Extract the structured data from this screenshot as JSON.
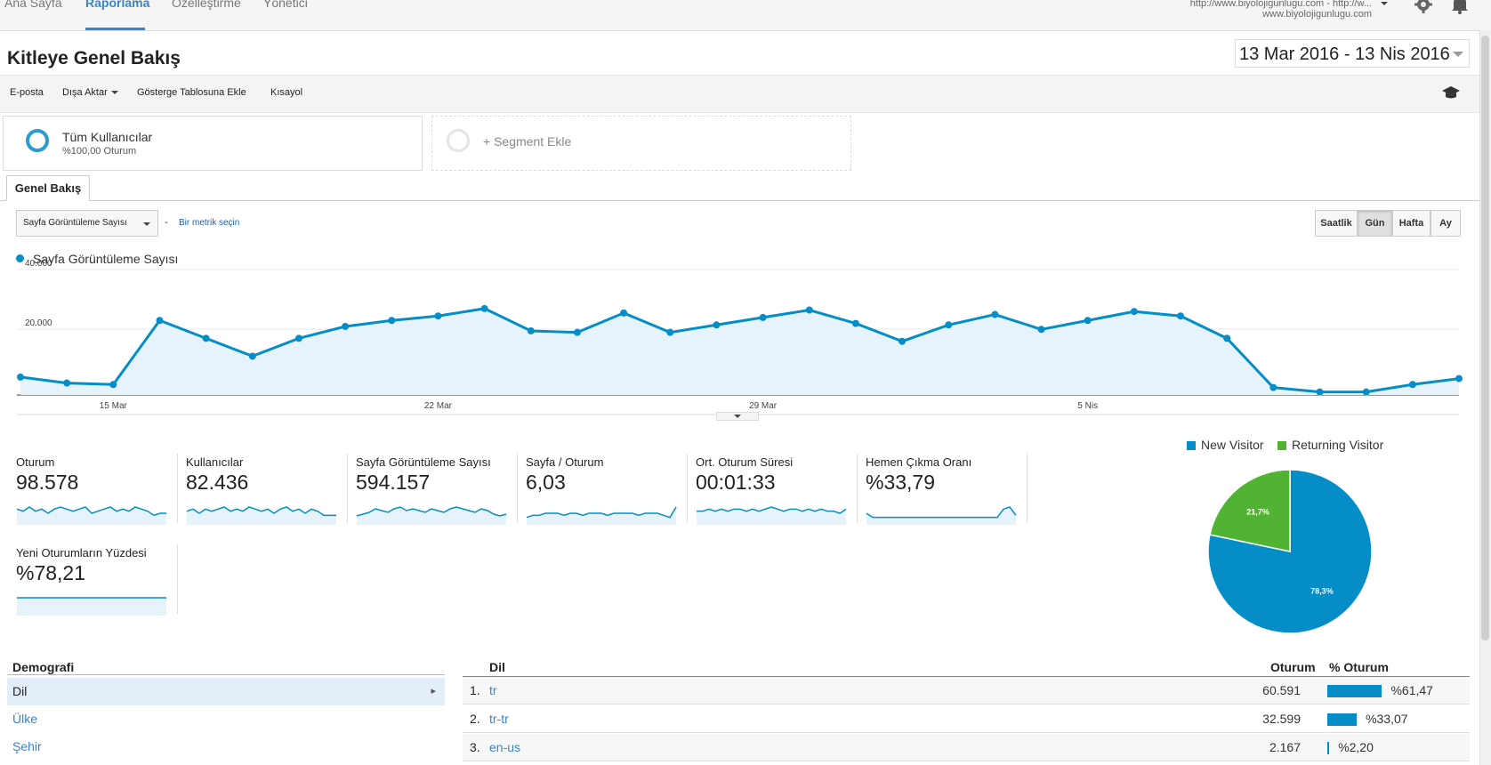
{
  "topnav": {
    "tabs": [
      {
        "label": "Ana Sayfa",
        "active": false
      },
      {
        "label": "Raporlama",
        "active": true
      },
      {
        "label": "Özelleştirme",
        "active": false
      },
      {
        "label": "Yönetici",
        "active": false
      }
    ],
    "account_line1": "http://www.biyolojigunlugu.com - http://w...",
    "account_line2": "www.biyolojigunlugu.com",
    "icons": [
      "gear-icon",
      "bell-icon"
    ]
  },
  "header": {
    "title": "Kitleye Genel Bakış",
    "date_range": "13 Mar 2016 - 13 Nis 2016"
  },
  "toolbar": {
    "email": "E-posta",
    "export": "Dışa Aktar",
    "add_dashboard": "Gösterge Tablosuna Ekle",
    "shortcut": "Kısayol"
  },
  "segments": {
    "active": {
      "name": "Tüm Kullanıcılar",
      "detail": "%100,00 Oturum"
    },
    "add": "+ Segment Ekle"
  },
  "tabs": {
    "overview": "Genel Bakış"
  },
  "metric_picker": {
    "selected": "Sayfa Görüntüleme Sayısı",
    "separator": "-",
    "choose": "Bir metrik seçin"
  },
  "granularity": [
    {
      "label": "Saatlik",
      "active": false
    },
    {
      "label": "Gün",
      "active": true
    },
    {
      "label": "Hafta",
      "active": false
    },
    {
      "label": "Ay",
      "active": false
    }
  ],
  "chart_data": {
    "type": "area",
    "series": [
      {
        "name": "Sayfa Görüntüleme Sayısı",
        "values": [
          6000,
          4000,
          3500,
          25000,
          19000,
          13000,
          19000,
          23000,
          25000,
          26500,
          29000,
          21500,
          21000,
          27500,
          21000,
          23500,
          26000,
          28500,
          24000,
          18000,
          23500,
          27000,
          22000,
          25000,
          28000,
          26500,
          19000,
          2500,
          1000,
          1000,
          3500,
          5500
        ]
      }
    ],
    "x_tick_labels": [
      "15 Mar",
      "22 Mar",
      "29 Mar",
      "5 Nis"
    ],
    "x_tick_indices": [
      2,
      9,
      16,
      23
    ],
    "y_ticks": [
      {
        "value": 20000,
        "label": "20.000"
      },
      {
        "value": 40000,
        "label": "40.000"
      }
    ],
    "ylim": [
      0,
      40000
    ],
    "color": "#058dc7",
    "fill": "#e6f3fa",
    "grid": true,
    "legend": "top-left"
  },
  "metrics": [
    {
      "label": "Oturum",
      "value": "98.578",
      "spark": [
        5,
        4,
        6,
        4,
        5,
        3,
        5,
        6,
        5,
        4,
        5,
        6,
        3,
        4,
        5,
        6,
        4,
        5,
        4,
        6,
        5,
        4,
        2,
        3,
        3
      ]
    },
    {
      "label": "Kullanıcılar",
      "value": "82.436",
      "spark": [
        4,
        5,
        3,
        5,
        4,
        5,
        6,
        4,
        5,
        4,
        6,
        5,
        4,
        5,
        3,
        5,
        6,
        4,
        5,
        3,
        5,
        4,
        2,
        2,
        2
      ]
    },
    {
      "label": "Sayfa Görüntüleme Sayısı",
      "value": "594.157",
      "spark": [
        2,
        3,
        4,
        6,
        5,
        4,
        6,
        7,
        5,
        6,
        5,
        4,
        6,
        5,
        4,
        6,
        7,
        6,
        5,
        4,
        6,
        5,
        3,
        2,
        3
      ]
    },
    {
      "label": "Sayfa / Oturum",
      "value": "6,03",
      "spark": [
        1,
        2,
        2,
        3,
        3,
        3,
        2,
        3,
        3,
        2,
        3,
        3,
        3,
        2,
        3,
        3,
        3,
        3,
        2,
        3,
        3,
        3,
        2,
        1,
        6
      ]
    },
    {
      "label": "Ort. Oturum Süresi",
      "value": "00:01:33",
      "spark": [
        4,
        4,
        5,
        4,
        5,
        4,
        5,
        5,
        4,
        5,
        4,
        5,
        6,
        5,
        4,
        5,
        5,
        4,
        5,
        4,
        5,
        4,
        4,
        3,
        5
      ]
    },
    {
      "label": "Hemen Çıkma Oranı",
      "value": "%33,79",
      "spark": [
        3,
        1,
        1,
        1,
        1,
        1,
        1,
        1,
        1,
        1,
        1,
        1,
        1,
        1,
        1,
        1,
        1,
        1,
        1,
        1,
        1,
        1,
        5,
        6,
        2
      ]
    },
    {
      "label": "Yeni Oturumların Yüzdesi",
      "value": "%78,21",
      "spark": [
        3,
        3,
        3,
        3,
        3,
        3,
        3,
        3,
        3,
        3,
        3,
        3,
        3,
        3,
        3,
        3,
        3,
        3,
        3,
        3,
        3,
        3,
        3,
        3,
        3
      ]
    }
  ],
  "pie": {
    "legend": [
      {
        "name": "New Visitor",
        "color": "#058dc7"
      },
      {
        "name": "Returning Visitor",
        "color": "#50b432"
      }
    ],
    "slices": [
      {
        "name": "New Visitor",
        "value": 78.3,
        "label": "78,3%",
        "color": "#058dc7"
      },
      {
        "name": "Returning Visitor",
        "value": 21.7,
        "label": "21,7%",
        "color": "#50b432"
      }
    ]
  },
  "demographics": {
    "title": "Demografi",
    "items": [
      {
        "label": "Dil",
        "selected": true
      },
      {
        "label": "Ülke",
        "selected": false
      },
      {
        "label": "Şehir",
        "selected": false
      }
    ]
  },
  "language_table": {
    "headers": {
      "dimension": "Dil",
      "sessions": "Oturum",
      "pct": "% Oturum"
    },
    "rows": [
      {
        "index": "1.",
        "code": "tr",
        "sessions": "60.591",
        "pct": "%61,47",
        "share": 0.6147
      },
      {
        "index": "2.",
        "code": "tr-tr",
        "sessions": "32.599",
        "pct": "%33,07",
        "share": 0.3307
      },
      {
        "index": "3.",
        "code": "en-us",
        "sessions": "2.167",
        "pct": "%2,20",
        "share": 0.022
      }
    ]
  }
}
